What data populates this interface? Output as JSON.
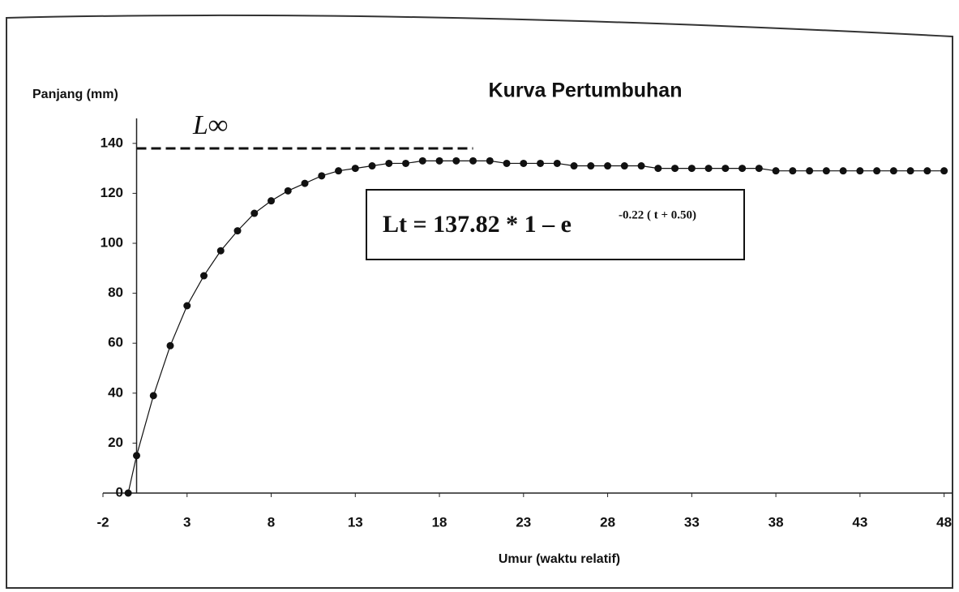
{
  "chart_data": {
    "type": "line",
    "title": "Kurva Pertumbuhan",
    "y_label": "Panjang (mm)",
    "x_label": "Umur (waktu relatif)",
    "x": [
      -0.5,
      0,
      1,
      2,
      3,
      4,
      5,
      6,
      7,
      8,
      9,
      10,
      11,
      12,
      13,
      14,
      15,
      16,
      17,
      18,
      19,
      20,
      21,
      22,
      23,
      24,
      25,
      26,
      27,
      28,
      29,
      30,
      31,
      32,
      33,
      34,
      35,
      36,
      37,
      38,
      39,
      40,
      41,
      42,
      43,
      44,
      45,
      46,
      47,
      48
    ],
    "series": [
      {
        "color": "#111111",
        "values": [
          0,
          15,
          39,
          59,
          75,
          87,
          97,
          105,
          112,
          117,
          121,
          124,
          127,
          129,
          130,
          131,
          132,
          132,
          133,
          133,
          133,
          133,
          133,
          132,
          132,
          132,
          132,
          131,
          131,
          131,
          131,
          131,
          130,
          130,
          130,
          130,
          130,
          130,
          130,
          129,
          129,
          129,
          129,
          129,
          129,
          129,
          129,
          129,
          129,
          129
        ]
      }
    ],
    "asymptote": {
      "label": "L∞",
      "value": 138
    },
    "formula": {
      "base": "Lt = 137.82 * 1 – e",
      "exponent": "-0.22 ( t + 0.50)"
    },
    "xlim": [
      -2,
      48.5
    ],
    "ylim": [
      0,
      150
    ],
    "xticks": [
      -2,
      3,
      8,
      13,
      18,
      23,
      28,
      33,
      38,
      43,
      48
    ],
    "yticks": [
      0,
      20,
      40,
      60,
      80,
      100,
      120,
      140
    ]
  }
}
